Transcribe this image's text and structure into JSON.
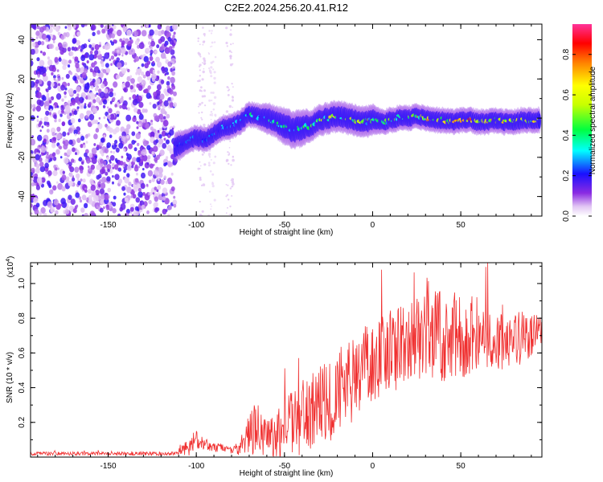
{
  "figure_title": "C2E2.2024.256.20.41.R12",
  "colors": {
    "snr_line": "#f03030",
    "axis": "#000000"
  },
  "chart_data": [
    {
      "type": "heatmap",
      "title": "C2E2.2024.256.20.41.R12",
      "xlabel": "Height of straight line (km)",
      "ylabel": "Frequency (Hz)",
      "xlim": [
        -194,
        96
      ],
      "ylim": [
        -50,
        48
      ],
      "x_ticks": [
        -150,
        -100,
        -50,
        0,
        50
      ],
      "x_tick_labels": [
        "-150",
        "-100",
        "-50",
        "0",
        "50"
      ],
      "y_ticks": [
        -40,
        -20,
        0,
        20,
        40
      ],
      "y_tick_labels": [
        "-40",
        "-20",
        "0",
        "20",
        "40"
      ],
      "colorbar": {
        "label": "Normalized spectral amplitude",
        "range": [
          0,
          0.95
        ],
        "ticks": [
          0.0,
          0.2,
          0.4,
          0.6,
          0.8
        ],
        "tick_labels": [
          "0.0",
          "0.2",
          "0.4",
          "0.6",
          "0.8"
        ],
        "colormap": "rainbow"
      },
      "noise_region_x": [
        -194,
        -112
      ],
      "ridge": {
        "x": [
          -112,
          -105,
          -100,
          -95,
          -90,
          -85,
          -80,
          -75,
          -70,
          -65,
          -60,
          -55,
          -50,
          -45,
          -40,
          -35,
          -30,
          -25,
          -20,
          -15,
          -10,
          -5,
          0,
          5,
          10,
          15,
          20,
          25,
          30,
          35,
          40,
          45,
          50,
          55,
          60,
          65,
          70,
          75,
          80,
          85,
          90,
          95
        ],
        "freq": [
          -15,
          -12,
          -10,
          -11,
          -8,
          -5,
          -4,
          -2,
          2,
          1,
          0,
          -2,
          -4,
          -6,
          -5,
          -4,
          -1,
          0,
          1,
          0,
          -1,
          -2,
          -1,
          -2,
          -1,
          0,
          0,
          1,
          0,
          -1,
          -1,
          -2,
          -1,
          -1,
          -2,
          -2,
          -1,
          -2,
          -2,
          -1,
          -1,
          -1
        ],
        "amplitude": [
          0.2,
          0.3,
          0.35,
          0.3,
          0.3,
          0.3,
          0.35,
          0.35,
          0.4,
          0.35,
          0.35,
          0.4,
          0.4,
          0.45,
          0.45,
          0.45,
          0.55,
          0.6,
          0.65,
          0.6,
          0.6,
          0.55,
          0.5,
          0.5,
          0.5,
          0.55,
          0.6,
          0.65,
          0.7,
          0.7,
          0.75,
          0.7,
          0.75,
          0.8,
          0.85,
          0.75,
          0.7,
          0.7,
          0.65,
          0.7,
          0.65,
          0.6
        ],
        "width_hz": [
          5,
          4,
          4,
          4,
          4,
          4,
          4,
          4,
          4,
          4,
          5,
          5,
          6,
          6,
          6,
          5,
          5,
          5,
          5,
          5,
          5,
          5,
          5,
          4,
          4,
          4,
          4,
          4,
          4,
          4,
          4,
          4,
          4,
          4,
          4,
          4,
          4,
          4,
          4,
          4,
          4,
          4
        ]
      }
    },
    {
      "type": "line",
      "title": "",
      "xlabel": "Height of straight line (km)",
      "ylabel": "SNR (10 * v/v)",
      "y_multiplier": "(x10",
      "y_multiplier_exp": "4",
      "y_multiplier_close": ")",
      "xlim": [
        -194,
        96
      ],
      "ylim": [
        0.0,
        1.12
      ],
      "x_ticks": [
        -150,
        -100,
        -50,
        0,
        50
      ],
      "x_tick_labels": [
        "-150",
        "-100",
        "-50",
        "0",
        "50"
      ],
      "y_ticks": [
        0.2,
        0.4,
        0.6,
        0.8,
        1.0
      ],
      "y_tick_labels": [
        "0.2",
        "0.4",
        "0.6",
        "0.8",
        "1.0"
      ],
      "series": [
        {
          "name": "SNR",
          "x": [
            -194,
            -180,
            -160,
            -140,
            -120,
            -112,
            -108,
            -104,
            -100,
            -96,
            -92,
            -88,
            -84,
            -80,
            -76,
            -72,
            -68,
            -64,
            -60,
            -56,
            -52,
            -48,
            -44,
            -40,
            -36,
            -32,
            -28,
            -24,
            -20,
            -16,
            -12,
            -8,
            -4,
            0,
            4,
            8,
            12,
            16,
            20,
            24,
            28,
            32,
            36,
            40,
            44,
            48,
            52,
            56,
            60,
            64,
            68,
            72,
            76,
            80,
            84,
            88,
            92,
            96
          ],
          "mean": [
            0.02,
            0.02,
            0.02,
            0.02,
            0.02,
            0.02,
            0.04,
            0.07,
            0.1,
            0.08,
            0.06,
            0.06,
            0.05,
            0.04,
            0.05,
            0.1,
            0.16,
            0.14,
            0.12,
            0.1,
            0.14,
            0.16,
            0.2,
            0.22,
            0.25,
            0.28,
            0.3,
            0.33,
            0.38,
            0.42,
            0.45,
            0.48,
            0.52,
            0.55,
            0.58,
            0.6,
            0.62,
            0.64,
            0.66,
            0.68,
            0.69,
            0.7,
            0.7,
            0.71,
            0.71,
            0.7,
            0.7,
            0.7,
            0.7,
            0.69,
            0.69,
            0.68,
            0.68,
            0.69,
            0.69,
            0.7,
            0.71,
            0.72
          ],
          "spread": [
            0.01,
            0.01,
            0.01,
            0.01,
            0.01,
            0.01,
            0.03,
            0.06,
            0.05,
            0.04,
            0.03,
            0.03,
            0.02,
            0.02,
            0.04,
            0.08,
            0.16,
            0.12,
            0.12,
            0.14,
            0.2,
            0.2,
            0.2,
            0.22,
            0.22,
            0.22,
            0.24,
            0.24,
            0.26,
            0.26,
            0.26,
            0.26,
            0.26,
            0.24,
            0.24,
            0.24,
            0.24,
            0.24,
            0.24,
            0.24,
            0.24,
            0.26,
            0.26,
            0.28,
            0.26,
            0.24,
            0.24,
            0.24,
            0.22,
            0.2,
            0.2,
            0.18,
            0.18,
            0.16,
            0.16,
            0.14,
            0.12,
            0.1
          ]
        }
      ]
    }
  ]
}
